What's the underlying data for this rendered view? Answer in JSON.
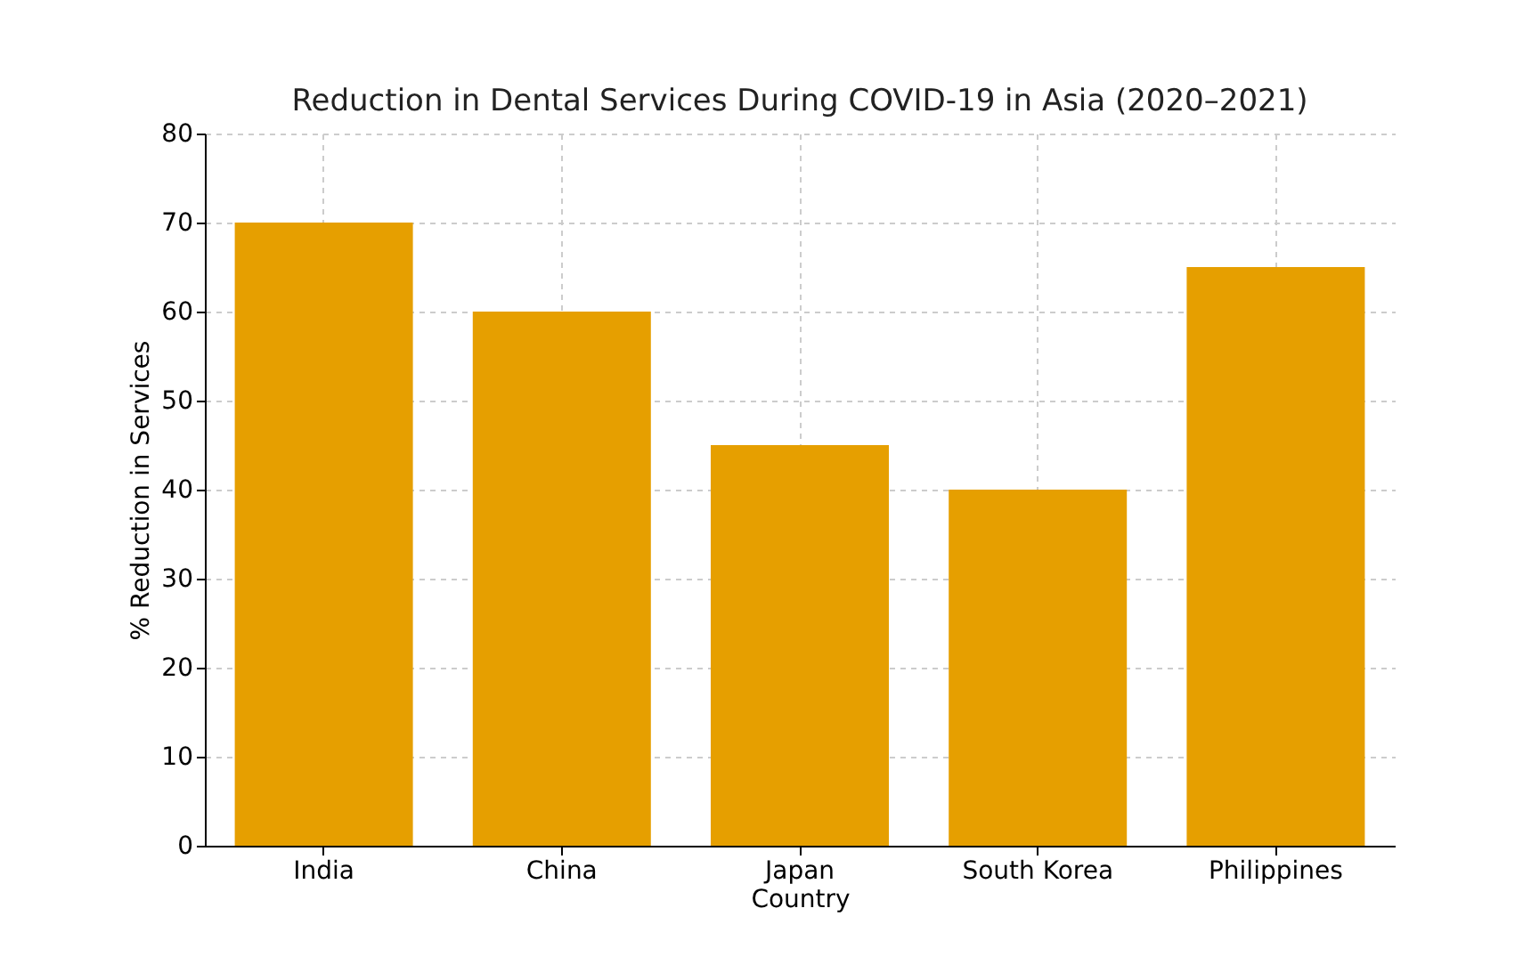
{
  "chart_data": {
    "type": "bar",
    "title": "Reduction in Dental Services During COVID-19 in Asia (2020–2021)",
    "xlabel": "Country",
    "ylabel": "% Reduction in Services",
    "categories": [
      "India",
      "China",
      "Japan",
      "South Korea",
      "Philippines"
    ],
    "values": [
      70,
      60,
      45,
      40,
      65
    ],
    "color": "#e69f00",
    "ylim": [
      0,
      80
    ],
    "yticks": [
      0,
      10,
      20,
      30,
      40,
      50,
      60,
      70,
      80
    ],
    "grid": true
  }
}
